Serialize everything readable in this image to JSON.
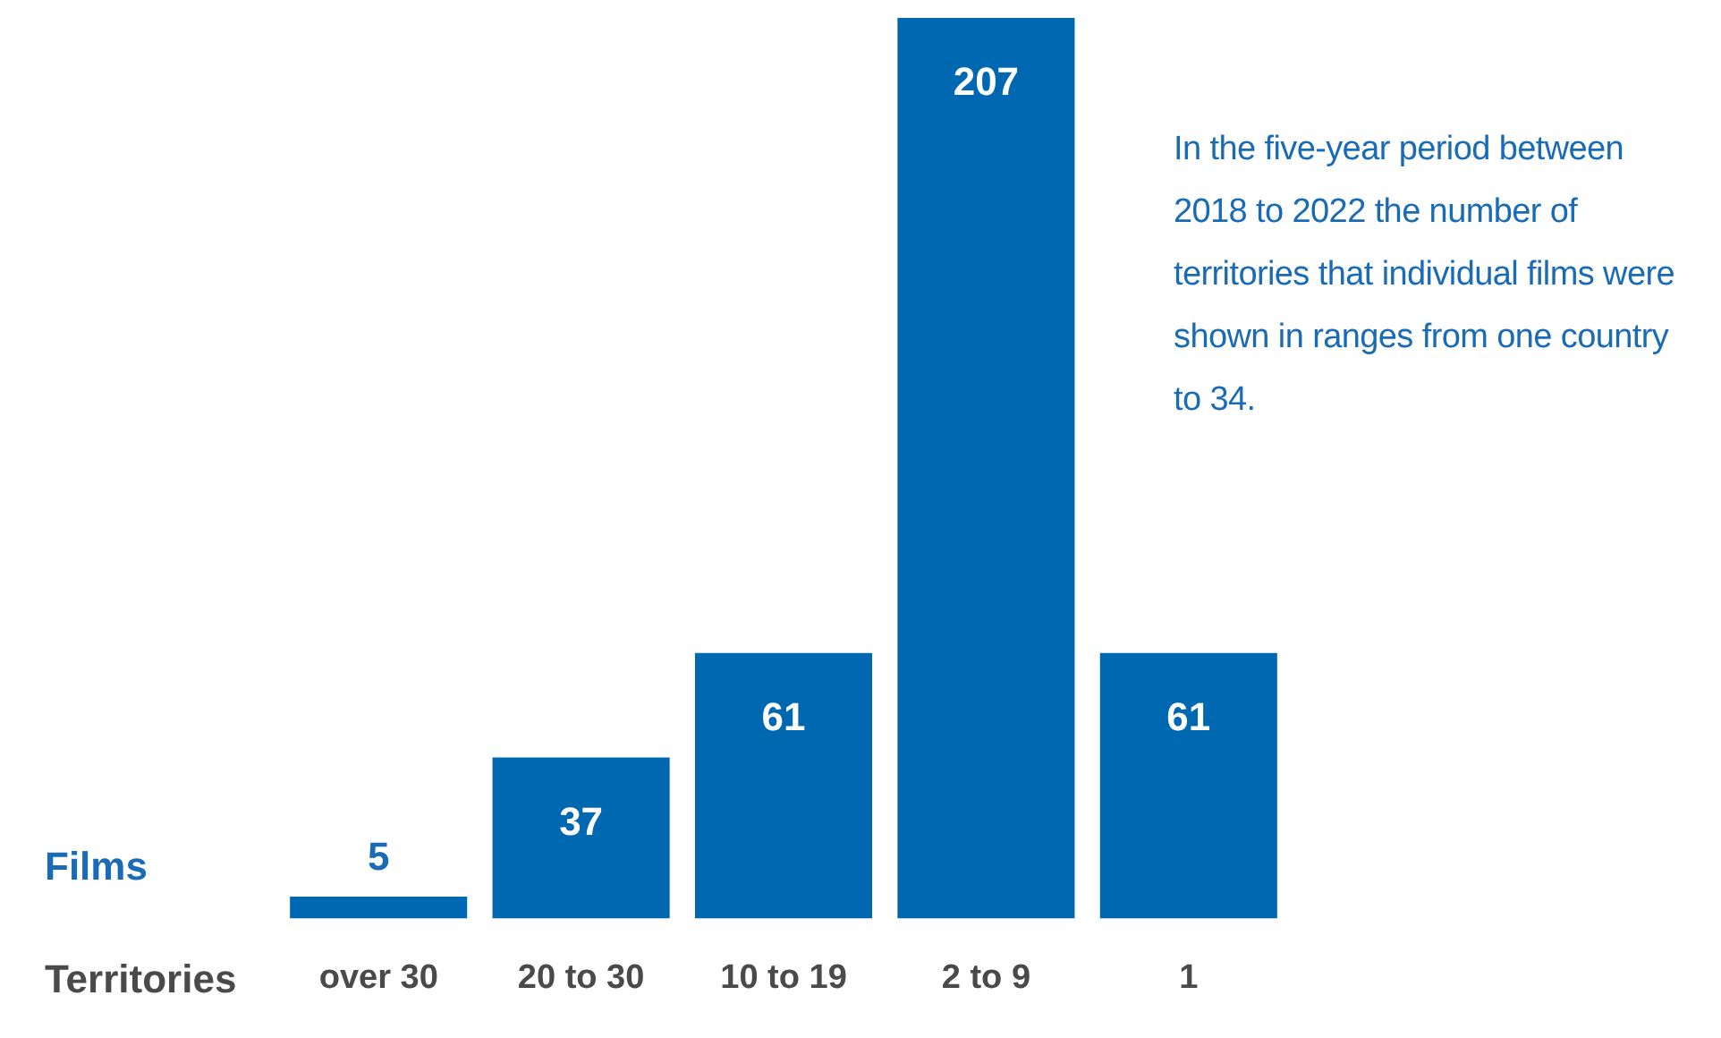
{
  "chart_data": {
    "type": "bar",
    "xlabel": "Territories",
    "ylabel": "Films",
    "categories": [
      "over 30",
      "20 to 30",
      "10 to 19",
      "2 to 9",
      "1"
    ],
    "values": [
      5,
      37,
      61,
      207,
      61
    ],
    "color": "#0068b1",
    "data_labels": true,
    "grid": false,
    "legend": false,
    "annotations": [
      "In the five-year period between 2018 to 2022 the number of territories that individual films were shown in ranges from one country to 34."
    ]
  }
}
